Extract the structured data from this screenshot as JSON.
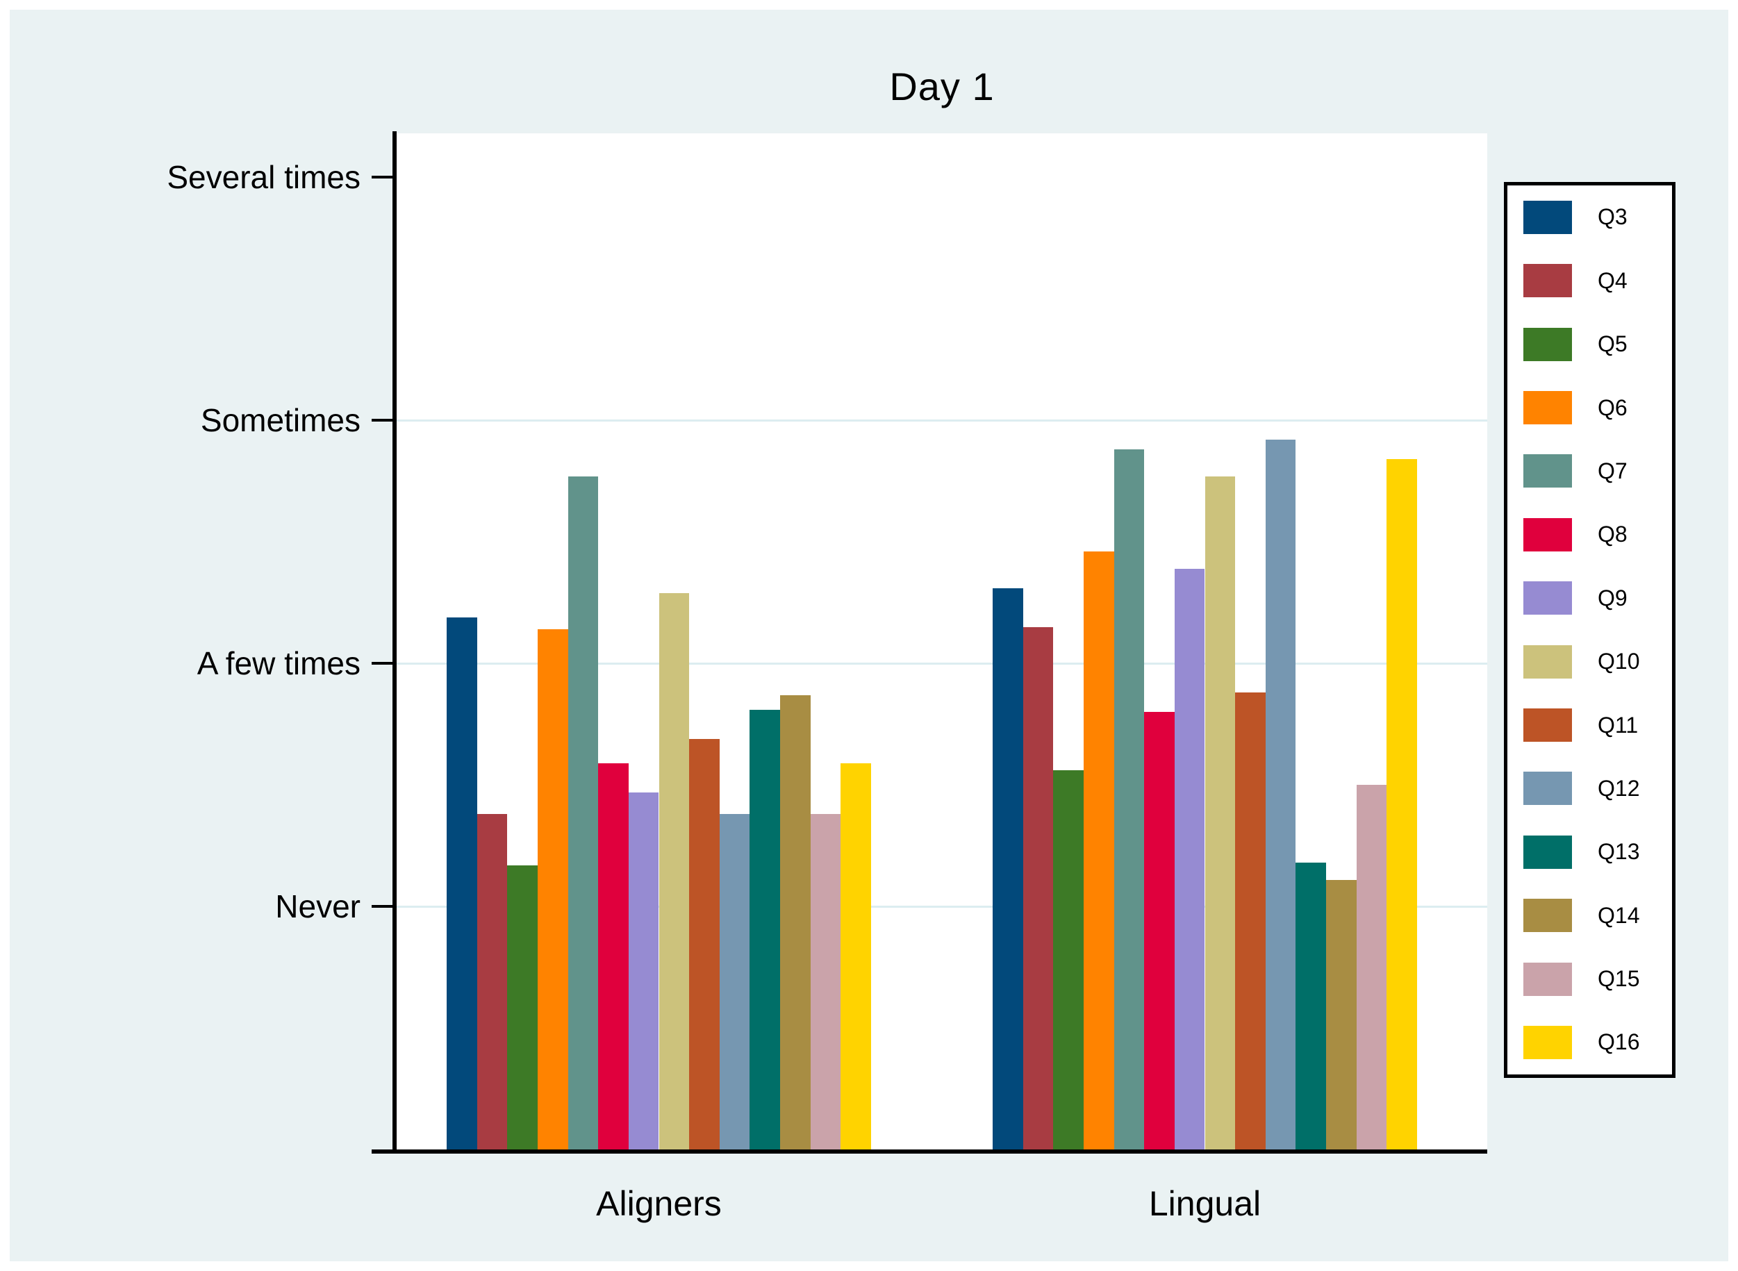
{
  "window": {
    "background": "#FFFFFF",
    "canvas_background": "#EAF2F3",
    "gridline_color": "#DCEDF0",
    "axis_color": "#000000"
  },
  "chart_data": {
    "type": "bar",
    "title": "Day 1",
    "categories": [
      "Aligners",
      "Lingual"
    ],
    "series": [
      {
        "name": "Q3",
        "color": "#02497B",
        "values": [
          2.19,
          2.31
        ]
      },
      {
        "name": "Q4",
        "color": "#A83C42",
        "values": [
          1.38,
          2.15
        ]
      },
      {
        "name": "Q5",
        "color": "#3D7A26",
        "values": [
          1.17,
          1.56
        ]
      },
      {
        "name": "Q6",
        "color": "#FF8300",
        "values": [
          2.14,
          2.46
        ]
      },
      {
        "name": "Q7",
        "color": "#61938B",
        "values": [
          2.77,
          2.88
        ]
      },
      {
        "name": "Q8",
        "color": "#E0003D",
        "values": [
          1.59,
          1.8
        ]
      },
      {
        "name": "Q9",
        "color": "#968BD2",
        "values": [
          1.47,
          2.39
        ]
      },
      {
        "name": "Q10",
        "color": "#CCC27C",
        "values": [
          2.29,
          2.77
        ]
      },
      {
        "name": "Q11",
        "color": "#BD5426",
        "values": [
          1.69,
          1.88
        ]
      },
      {
        "name": "Q12",
        "color": "#7697B1",
        "values": [
          1.38,
          2.92
        ]
      },
      {
        "name": "Q13",
        "color": "#006F68",
        "values": [
          1.81,
          1.18
        ]
      },
      {
        "name": "Q14",
        "color": "#A88D43",
        "values": [
          1.87,
          1.11
        ]
      },
      {
        "name": "Q15",
        "color": "#CAA3AA",
        "values": [
          1.38,
          1.5
        ]
      },
      {
        "name": "Q16",
        "color": "#FFD300",
        "values": [
          1.59,
          2.84
        ]
      }
    ],
    "y_axis": {
      "ticks": [
        {
          "value": 1,
          "label": "Never"
        },
        {
          "value": 2,
          "label": "A few times"
        },
        {
          "value": 3,
          "label": "Sometimes"
        },
        {
          "value": 4,
          "label": "Several times"
        }
      ],
      "range": [
        0,
        4.18
      ],
      "gridlines_at_values": [
        1,
        2,
        3
      ],
      "grid": "on"
    },
    "legend": {
      "position": "right",
      "entries": [
        "Q3",
        "Q4",
        "Q5",
        "Q6",
        "Q7",
        "Q8",
        "Q9",
        "Q10",
        "Q11",
        "Q12",
        "Q13",
        "Q14",
        "Q15",
        "Q16"
      ]
    }
  }
}
